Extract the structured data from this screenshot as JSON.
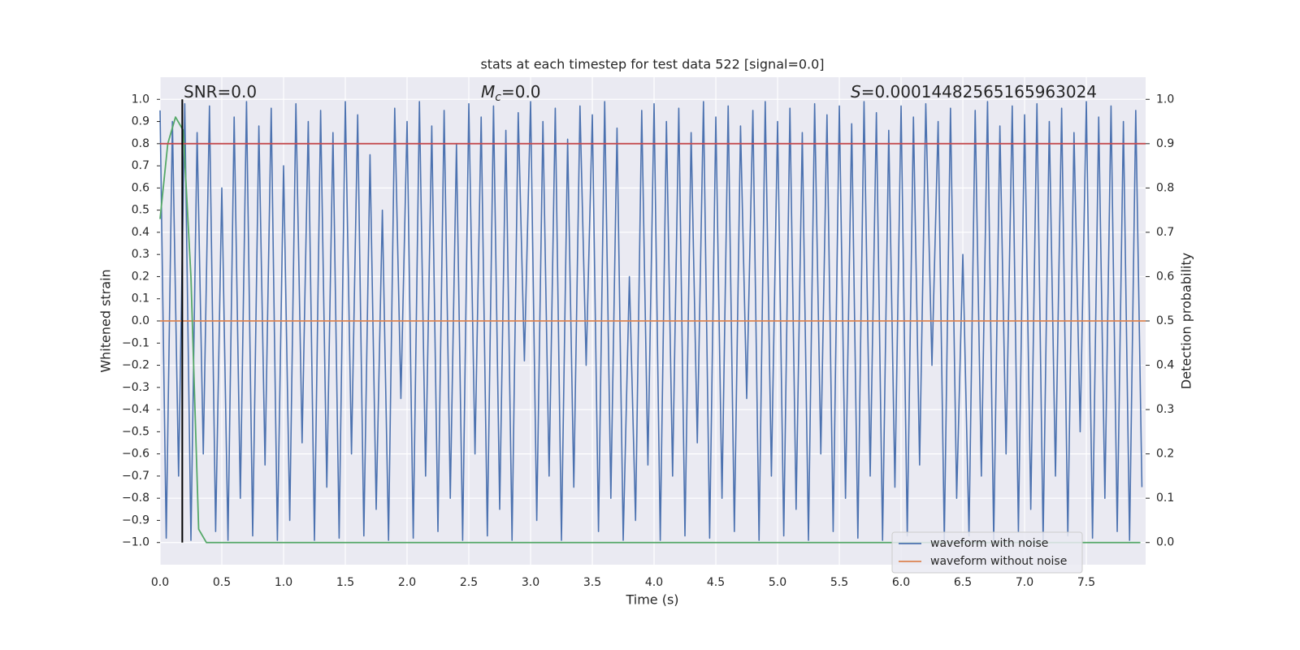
{
  "chart_data": {
    "type": "line",
    "title": "stats at each timestep for test data 522 [signal=0.0]",
    "x_label": "Time (s)",
    "y_label": "Whitened strain",
    "y2_label": "Detection probability",
    "annotations": [
      {
        "text": "SNR=0.0"
      },
      {
        "symbol": "M",
        "subscript": "c",
        "text": "=0.0"
      },
      {
        "symbol": "S",
        "text": "=0.00014482565165963024"
      }
    ],
    "xlim": [
      0,
      7.98
    ],
    "xticks": [
      {
        "value": 0,
        "label": "0.0"
      },
      {
        "value": 0.5,
        "label": "0.5"
      },
      {
        "value": 1,
        "label": "1.0"
      },
      {
        "value": 1.5,
        "label": "1.5"
      },
      {
        "value": 2,
        "label": "2.0"
      },
      {
        "value": 2.5,
        "label": "2.5"
      },
      {
        "value": 3,
        "label": "3.0"
      },
      {
        "value": 3.5,
        "label": "3.5"
      },
      {
        "value": 4,
        "label": "4.0"
      },
      {
        "value": 4.5,
        "label": "4.5"
      },
      {
        "value": 5,
        "label": "5.0"
      },
      {
        "value": 5.5,
        "label": "5.5"
      },
      {
        "value": 6,
        "label": "6.0"
      },
      {
        "value": 6.5,
        "label": "6.5"
      },
      {
        "value": 7,
        "label": "7.0"
      },
      {
        "value": 7.5,
        "label": "7.5"
      }
    ],
    "ylim": [
      -1.1,
      1.1
    ],
    "yticks": [
      {
        "value": -1.0,
        "label": "−1.0"
      },
      {
        "value": -0.9,
        "label": "−0.9"
      },
      {
        "value": -0.8,
        "label": "−0.8"
      },
      {
        "value": -0.7,
        "label": "−0.7"
      },
      {
        "value": -0.6,
        "label": "−0.6"
      },
      {
        "value": -0.5,
        "label": "−0.5"
      },
      {
        "value": -0.4,
        "label": "−0.4"
      },
      {
        "value": -0.3,
        "label": "−0.3"
      },
      {
        "value": -0.2,
        "label": "−0.2"
      },
      {
        "value": -0.1,
        "label": "−0.1"
      },
      {
        "value": 0,
        "label": "0.0"
      },
      {
        "value": 0.1,
        "label": "0.1"
      },
      {
        "value": 0.2,
        "label": "0.2"
      },
      {
        "value": 0.3,
        "label": "0.3"
      },
      {
        "value": 0.4,
        "label": "0.4"
      },
      {
        "value": 0.5,
        "label": "0.5"
      },
      {
        "value": 0.6,
        "label": "0.6"
      },
      {
        "value": 0.7,
        "label": "0.7"
      },
      {
        "value": 0.8,
        "label": "0.8"
      },
      {
        "value": 0.9,
        "label": "0.9"
      },
      {
        "value": 1.0,
        "label": "1.0"
      }
    ],
    "y2lim": [
      -0.05,
      1.05
    ],
    "y2ticks": [
      {
        "value": 0,
        "label": "0.0"
      },
      {
        "value": 0.1,
        "label": "0.1"
      },
      {
        "value": 0.2,
        "label": "0.2"
      },
      {
        "value": 0.3,
        "label": "0.3"
      },
      {
        "value": 0.4,
        "label": "0.4"
      },
      {
        "value": 0.5,
        "label": "0.5"
      },
      {
        "value": 0.6,
        "label": "0.6"
      },
      {
        "value": 0.7,
        "label": "0.7"
      },
      {
        "value": 0.8,
        "label": "0.8"
      },
      {
        "value": 0.9,
        "label": "0.9"
      },
      {
        "value": 1.0,
        "label": "1.0"
      }
    ],
    "grid": true,
    "legend": "lower right",
    "series": [
      {
        "name": "waveform with noise",
        "color": "#4c72b0",
        "x": [
          0,
          0.05,
          0.1,
          0.15,
          0.2,
          0.25,
          0.3,
          0.35,
          0.4,
          0.45,
          0.5,
          0.55,
          0.6,
          0.65,
          0.7,
          0.75,
          0.8,
          0.85,
          0.9,
          0.95,
          1,
          1.05,
          1.1,
          1.15,
          1.2,
          1.25,
          1.3,
          1.35,
          1.4,
          1.45,
          1.5,
          1.55,
          1.6,
          1.65,
          1.7,
          1.75,
          1.8,
          1.85,
          1.9,
          1.95,
          2,
          2.05,
          2.1,
          2.15,
          2.2,
          2.25,
          2.3,
          2.35,
          2.4,
          2.45,
          2.5,
          2.55,
          2.6,
          2.65,
          2.7,
          2.75,
          2.8,
          2.85,
          2.9,
          2.95,
          3,
          3.05,
          3.1,
          3.15,
          3.2,
          3.25,
          3.3,
          3.35,
          3.4,
          3.45,
          3.5,
          3.55,
          3.6,
          3.65,
          3.7,
          3.75,
          3.8,
          3.85,
          3.9,
          3.95,
          4,
          4.05,
          4.1,
          4.15,
          4.2,
          4.25,
          4.3,
          4.35,
          4.4,
          4.45,
          4.5,
          4.55,
          4.6,
          4.65,
          4.7,
          4.75,
          4.8,
          4.85,
          4.9,
          4.95,
          5,
          5.05,
          5.1,
          5.15,
          5.2,
          5.25,
          5.3,
          5.35,
          5.4,
          5.45,
          5.5,
          5.55,
          5.6,
          5.65,
          5.7,
          5.75,
          5.8,
          5.85,
          5.9,
          5.95,
          6,
          6.05,
          6.1,
          6.15,
          6.2,
          6.25,
          6.3,
          6.35,
          6.4,
          6.45,
          6.5,
          6.55,
          6.6,
          6.65,
          6.7,
          6.75,
          6.8,
          6.85,
          6.9,
          6.95,
          7,
          7.05,
          7.1,
          7.15,
          7.2,
          7.25,
          7.3,
          7.35,
          7.4,
          7.45,
          7.5,
          7.55,
          7.6,
          7.65,
          7.7,
          7.75,
          7.8,
          7.85,
          7.9,
          7.95
        ],
        "values": [
          0.95,
          -0.98,
          0.9,
          -0.7,
          0.98,
          -0.99,
          0.85,
          -0.6,
          0.97,
          -0.95,
          0.6,
          -0.99,
          0.92,
          -0.8,
          0.99,
          -0.97,
          0.88,
          -0.65,
          0.96,
          -0.99,
          0.7,
          -0.9,
          0.98,
          -0.55,
          0.9,
          -0.99,
          0.95,
          -0.75,
          0.85,
          -0.98,
          0.99,
          -0.6,
          0.93,
          -0.97,
          0.75,
          -0.85,
          0.5,
          -0.99,
          0.96,
          -0.35,
          0.9,
          -0.98,
          0.99,
          -0.7,
          0.88,
          -0.95,
          0.95,
          -0.8,
          0.8,
          -0.99,
          0.98,
          -0.6,
          0.92,
          -0.97,
          0.97,
          -0.85,
          0.86,
          -0.99,
          0.94,
          -0.18,
          0.99,
          -0.9,
          0.9,
          -0.7,
          0.96,
          -0.99,
          0.82,
          -0.75,
          0.97,
          -0.2,
          0.93,
          -0.95,
          0.99,
          -0.8,
          0.87,
          -0.99,
          0.2,
          -0.9,
          0.95,
          -0.65,
          0.98,
          -0.99,
          0.9,
          -0.7,
          0.96,
          -0.97,
          0.85,
          -0.55,
          0.99,
          -0.98,
          0.92,
          -0.8,
          0.97,
          -0.95,
          0.88,
          -0.35,
          0.95,
          -0.99,
          0.99,
          -0.7,
          0.9,
          -0.97,
          0.96,
          -0.85,
          0.85,
          -0.99,
          0.98,
          -0.6,
          0.93,
          -0.95,
          0.97,
          -0.8,
          0.89,
          -0.98,
          0.99,
          -0.7,
          0.94,
          -0.99,
          0.86,
          -0.75,
          0.97,
          -0.97,
          0.92,
          -0.65,
          0.98,
          -0.2,
          0.9,
          -0.99,
          0.96,
          -0.8,
          0.3,
          -0.97,
          0.95,
          -0.7,
          0.99,
          -0.99,
          0.88,
          -0.6,
          0.97,
          -0.95,
          0.93,
          -0.85,
          0.98,
          -0.99,
          0.9,
          -0.7,
          0.96,
          -0.97,
          0.85,
          -0.5,
          0.99,
          -0.98,
          0.92,
          -0.8,
          0.97,
          -0.95,
          0.9,
          -0.99,
          0.95,
          -0.75
        ]
      },
      {
        "name": "waveform without noise",
        "color": "#dd8452",
        "x": [
          0,
          7.98
        ],
        "values": [
          0,
          0
        ]
      },
      {
        "color": "#55a868",
        "axis": "y2",
        "x": [
          0,
          0.0625,
          0.125,
          0.1875,
          0.25,
          0.3125,
          0.375,
          7.9375
        ],
        "values": [
          0.73,
          0.9,
          0.96,
          0.93,
          0.6,
          0.03,
          0,
          0
        ]
      }
    ],
    "hline": {
      "y": 0.8,
      "color": "#c44e52"
    },
    "vline": {
      "x": 0.18,
      "color": "#000000"
    }
  }
}
